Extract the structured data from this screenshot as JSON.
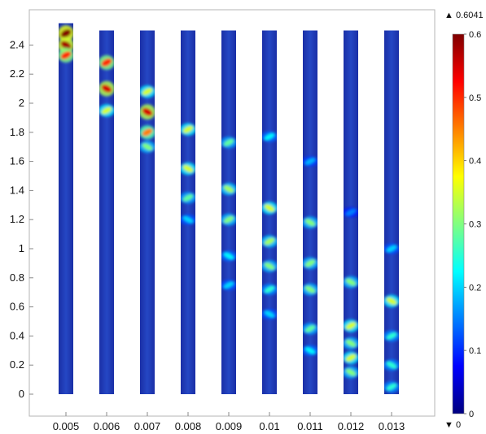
{
  "chart_data": {
    "type": "heatmap",
    "title": "",
    "xlabel": "",
    "ylabel": "",
    "x_categories": [
      "0.005",
      "0.006",
      "0.007",
      "0.008",
      "0.009",
      "0.01",
      "0.011",
      "0.012",
      "0.013"
    ],
    "y_ticks": [
      "0",
      "0.2",
      "0.4",
      "0.6",
      "0.8",
      "1",
      "1.2",
      "1.4",
      "1.6",
      "1.8",
      "2",
      "2.2",
      "2.4"
    ],
    "ylim": [
      -0.1,
      2.6
    ],
    "column_top": [
      2.55,
      2.5,
      2.5,
      2.5,
      2.5,
      2.5,
      2.5,
      2.5,
      2.5
    ],
    "column_bottom": 0,
    "hot_spots": [
      {
        "column": "0.005",
        "y": [
          2.48,
          2.4,
          2.33
        ],
        "intensity": [
          0.6,
          0.58,
          0.5
        ]
      },
      {
        "column": "0.006",
        "y": [
          2.28,
          2.1,
          1.95
        ],
        "intensity": [
          0.5,
          0.55,
          0.35
        ]
      },
      {
        "column": "0.007",
        "y": [
          2.08,
          1.94,
          1.8,
          1.7
        ],
        "intensity": [
          0.35,
          0.55,
          0.45,
          0.3
        ]
      },
      {
        "column": "0.008",
        "y": [
          1.82,
          1.55,
          1.35,
          1.2
        ],
        "intensity": [
          0.35,
          0.35,
          0.28,
          0.2
        ]
      },
      {
        "column": "0.009",
        "y": [
          1.73,
          1.41,
          1.2,
          0.95,
          0.75
        ],
        "intensity": [
          0.28,
          0.32,
          0.3,
          0.22,
          0.2
        ]
      },
      {
        "column": "0.01",
        "y": [
          1.77,
          1.28,
          1.05,
          0.88,
          0.72,
          0.55
        ],
        "intensity": [
          0.22,
          0.35,
          0.32,
          0.3,
          0.25,
          0.2
        ]
      },
      {
        "column": "0.011",
        "y": [
          1.6,
          1.18,
          0.9,
          0.72,
          0.45,
          0.3
        ],
        "intensity": [
          0.18,
          0.3,
          0.3,
          0.3,
          0.28,
          0.22
        ]
      },
      {
        "column": "0.012",
        "y": [
          1.25,
          0.77,
          0.47,
          0.35,
          0.25,
          0.15
        ],
        "intensity": [
          0.15,
          0.3,
          0.35,
          0.3,
          0.35,
          0.3
        ]
      },
      {
        "column": "0.013",
        "y": [
          1.0,
          0.64,
          0.4,
          0.2,
          0.05
        ],
        "intensity": [
          0.2,
          0.35,
          0.25,
          0.25,
          0.25
        ]
      }
    ],
    "colorbar": {
      "min": 0,
      "max": 0.6,
      "ticks": [
        "0",
        "0.1",
        "0.2",
        "0.3",
        "0.4",
        "0.5",
        "0.6"
      ],
      "colormap": "rainbow",
      "colors": [
        "#00007f",
        "#0000ff",
        "#0080ff",
        "#00ffff",
        "#80ff80",
        "#ffff00",
        "#ff8000",
        "#ff0000",
        "#7f0000"
      ],
      "max_marker": "▲ 0.6041",
      "min_marker": "▼ 0"
    }
  }
}
